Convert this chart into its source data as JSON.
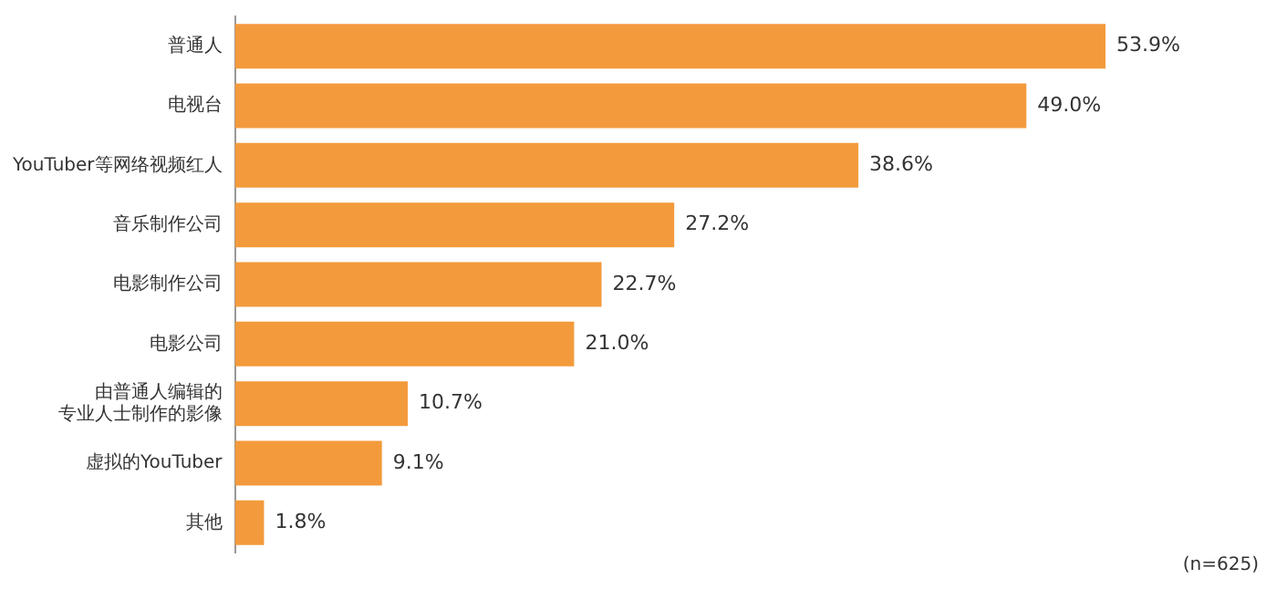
{
  "chart_data": {
    "type": "bar",
    "orientation": "horizontal",
    "categories": [
      "普通人",
      "电视台",
      "YouTuber等网络视频红人",
      "音乐制作公司",
      "电影制作公司",
      "电影公司",
      "由普通人编辑的专业人士制作的影像",
      "虚拟的YouTuber",
      "其他"
    ],
    "values": [
      53.9,
      49.0,
      38.6,
      27.2,
      22.7,
      21.0,
      10.7,
      9.1,
      1.8
    ],
    "value_labels": [
      "53.9%",
      "49.0%",
      "38.6%",
      "27.2%",
      "22.7%",
      "21.0%",
      "10.7%",
      "9.1%",
      "1.8%"
    ],
    "color": "#f39a3c",
    "grid": false,
    "legend": false,
    "tick_labels": "y",
    "annotations": [
      "(n=625)"
    ]
  }
}
